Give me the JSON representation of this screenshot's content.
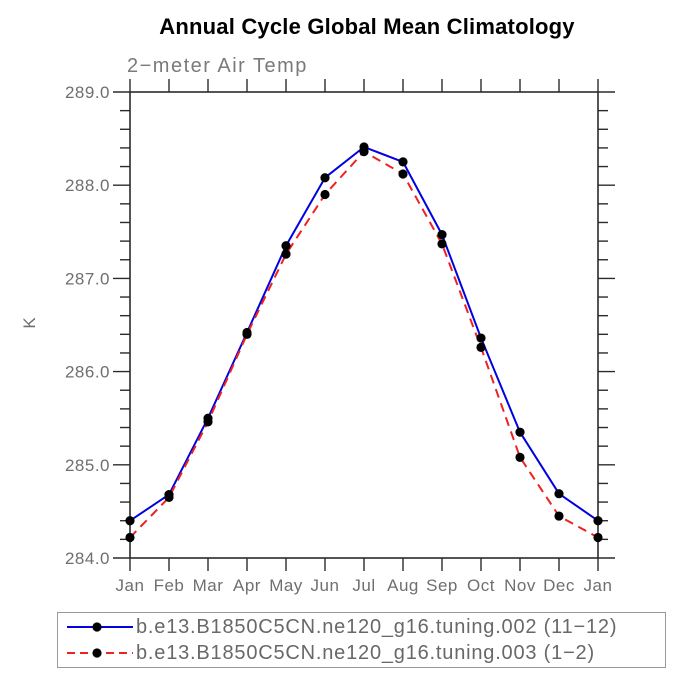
{
  "colors": {
    "background": "#ffffff",
    "title_text": "#000000",
    "subtitle_text": "#7a7a7a",
    "axis_text": "#6f6f6f",
    "axis_line": "#2b2b2b",
    "legend_border": "#9a9a9a",
    "legend_text": "#686868",
    "marker": "#000000",
    "series_blue": "#0202e0",
    "series_red": "#ee2222"
  },
  "chart_data": {
    "type": "line",
    "title": "Annual Cycle Global Mean Climatology",
    "subtitle": "2−meter Air Temp",
    "ylabel": "K",
    "xlabel": "",
    "x_categories": [
      "Jan",
      "Feb",
      "Mar",
      "Apr",
      "May",
      "Jun",
      "Jul",
      "Aug",
      "Sep",
      "Oct",
      "Nov",
      "Dec",
      "Jan"
    ],
    "ylim": [
      284.0,
      289.0
    ],
    "ytick_major_interval": 1.0,
    "ytick_minor_interval": 0.2,
    "ytick_labels": [
      "284.0",
      "285.0",
      "286.0",
      "287.0",
      "288.0",
      "289.0"
    ],
    "grid": false,
    "legend_position": "bottom-left",
    "series": [
      {
        "name": "b.e13.B1850C5CN.ne120_g16.tuning.002 (11−12)",
        "line_color": "#0202e0",
        "line_style": "solid",
        "marker": "filled-circle",
        "marker_color": "#000000",
        "values": [
          284.4,
          284.68,
          285.5,
          286.42,
          287.35,
          288.08,
          288.41,
          288.25,
          287.47,
          286.36,
          285.35,
          284.69,
          284.4
        ]
      },
      {
        "name": "b.e13.B1850C5CN.ne120_g16.tuning.003 (1−2)",
        "line_color": "#ee2222",
        "line_style": "dashed",
        "marker": "filled-circle",
        "marker_color": "#000000",
        "values": [
          284.22,
          284.65,
          285.46,
          286.4,
          287.26,
          287.9,
          288.36,
          288.12,
          287.37,
          286.26,
          285.08,
          284.45,
          284.22
        ]
      }
    ]
  }
}
